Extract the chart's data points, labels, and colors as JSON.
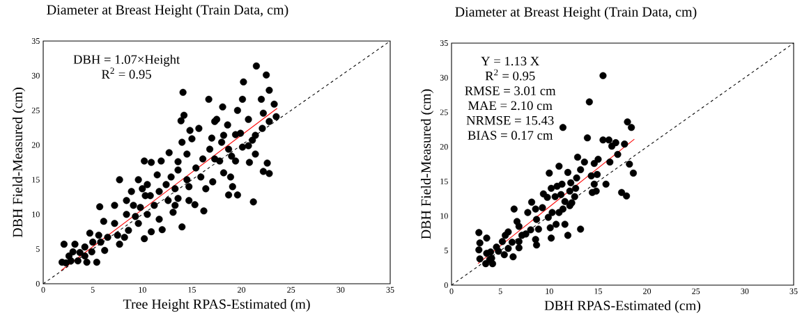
{
  "chart_data": [
    {
      "type": "scatter",
      "title": "Diameter at Breast Height (Train Data, cm)",
      "xlabel": "Tree Height RPAS-Estimated (m)",
      "ylabel": "DBH Field-Measured (cm)",
      "annotations": [
        "DBH = 1.07×Height",
        "R$^{2}$ = 0.95"
      ],
      "xlim": [
        0,
        35
      ],
      "ylim": [
        0,
        35
      ],
      "xticks": [
        0,
        5,
        10,
        15,
        20,
        25,
        30,
        35
      ],
      "yticks": [
        0,
        5,
        10,
        15,
        20,
        25,
        30,
        35
      ],
      "marker": "circle",
      "series": [
        {
          "type": "scatter",
          "color": "#000000",
          "x": [
            21.5,
            22.5,
            20.2,
            22.8,
            14.1,
            16.7,
            20.1,
            22.0,
            18.1,
            19.6,
            23.3,
            22.2,
            23.5,
            22.8,
            14.2,
            13.9,
            17.5,
            18.6,
            20.7,
            22.1,
            21.4,
            14.8,
            15.7,
            17.0,
            20.7,
            21.4,
            22.6,
            22.2,
            22.8,
            21.2,
            18.7,
            19.6,
            19.1,
            18.9,
            16.2,
            15.3,
            14.0,
            10.2,
            10.9,
            7.7,
            5.7,
            12.7,
            14.0,
            15.0,
            16.8,
            18.2,
            19.9,
            17.8,
            19.4,
            18.2,
            15.9,
            17.1,
            14.7,
            16.4,
            13.6,
            14.5,
            11.9,
            11.5,
            9.6,
            10.5,
            12.4,
            8.9,
            10.8,
            12.6,
            13.6,
            14.7,
            13.1,
            11.7,
            12.0,
            10.9,
            10.2,
            9.6,
            8.4,
            7.2,
            9.8,
            11.2,
            7.7,
            8.6,
            7.2,
            6.1,
            5.6,
            4.7,
            6.5,
            7.5,
            6.2,
            5.4,
            4.2,
            3.2,
            2.1,
            1.9,
            2.6,
            3.5,
            4.2,
            4.9,
            2.3,
            3.0,
            5.8,
            5.0,
            3.7,
            2.8,
            4.4,
            10.3,
            10.0,
            11.7,
            8.4,
            9.1,
            9.3,
            10.5,
            8.2,
            13.3,
            14.5,
            15.4,
            16.1,
            17.3,
            18.7,
            19.0,
            20.1,
            21.1,
            20.8,
            18.0,
            17.3,
            19.4,
            13.6,
            12.9,
            13.3
          ],
          "values": [
            31.4,
            30.1,
            29.1,
            27.9,
            27.6,
            26.6,
            26.6,
            26.6,
            25.5,
            25.0,
            25.9,
            24.6,
            24.1,
            23.4,
            24.3,
            23.5,
            23.7,
            22.9,
            23.7,
            22.4,
            21.4,
            22.1,
            22.4,
            21.0,
            19.9,
            18.7,
            17.4,
            16.2,
            15.9,
            11.8,
            12.8,
            12.8,
            14.0,
            15.4,
            10.5,
            11.4,
            8.2,
            17.7,
            17.5,
            15.0,
            11.1,
            18.9,
            20.4,
            20.9,
            19.4,
            21.4,
            21.7,
            17.7,
            17.7,
            16.0,
            15.4,
            14.7,
            14.0,
            13.7,
            16.4,
            18.7,
            17.7,
            15.7,
            15.0,
            14.3,
            14.3,
            13.3,
            12.7,
            12.0,
            12.3,
            12.0,
            10.3,
            9.3,
            7.8,
            7.5,
            6.5,
            8.7,
            10.0,
            11.3,
            11.0,
            11.3,
            5.7,
            7.7,
            8.7,
            9.0,
            7.0,
            7.3,
            6.7,
            7.0,
            4.8,
            3.1,
            5.3,
            5.7,
            5.7,
            3.1,
            4.0,
            3.3,
            4.0,
            4.6,
            3.0,
            4.6,
            6.0,
            6.0,
            4.5,
            3.3,
            3.1,
            12.7,
            13.7,
            13.3,
            12.0,
            11.3,
            9.7,
            10.0,
            6.7,
            11.3,
            15.0,
            16.7,
            18.0,
            18.0,
            19.4,
            18.4,
            19.7,
            20.7,
            17.5,
            20.4,
            23.4,
            21.5,
            17.6,
            15.4,
            13.7
          ]
        },
        {
          "type": "line",
          "color": "#ff0000",
          "marker": "none",
          "x": [
            1.8,
            23.6
          ],
          "values": [
            1.9,
            25.3
          ]
        },
        {
          "type": "line",
          "color": "#000000",
          "marker": "none",
          "line_style": "dashed",
          "x": [
            0,
            35
          ],
          "values": [
            0,
            35
          ]
        }
      ]
    },
    {
      "type": "scatter",
      "title": "Diameter at Breast Height (Train Data, cm)",
      "xlabel": "DBH RPAS-Estimated  (cm)",
      "ylabel": "DBH Field-Measured (cm)",
      "annotations": [
        "Y = 1.13 X",
        "R$^{2}$ = 0.95",
        "RMSE = 3.01 cm",
        "MAE = 2.10 cm",
        "NRMSE = 15.43",
        "BIAS = 0.17 cm"
      ],
      "xlim": [
        0,
        35
      ],
      "ylim": [
        0,
        35
      ],
      "xticks": [
        0,
        5,
        10,
        15,
        20,
        25,
        30,
        35
      ],
      "yticks": [
        0,
        5,
        10,
        15,
        20,
        25,
        30,
        35
      ],
      "marker": "circle",
      "series": [
        {
          "type": "scatter",
          "color": "#000000",
          "x": [
            15.5,
            14.1,
            11.4,
            18.0,
            18.4,
            13.9,
            15.5,
            16.1,
            16.8,
            16.4,
            17.7,
            12.9,
            13.6,
            15.0,
            14.6,
            16.2,
            17.0,
            18.2,
            18.6,
            11.0,
            10.0,
            11.9,
            13.2,
            14.3,
            14.9,
            12.8,
            12.2,
            11.3,
            10.2,
            10.8,
            14.6,
            15.8,
            14.4,
            14.8,
            17.4,
            17.9,
            12.1,
            12.7,
            12.6,
            9.4,
            9.8,
            10.6,
            11.2,
            11.6,
            12.3,
            12.1,
            9.3,
            8.2,
            8.6,
            7.8,
            6.4,
            11.4,
            11.0,
            10.3,
            9.9,
            8.7,
            6.7,
            6.9,
            10.7,
            11.6,
            10.1,
            8.9,
            8.1,
            7.6,
            7.2,
            13.2,
            11.9,
            10.2,
            8.6,
            8.7,
            6.9,
            6.9,
            6.2,
            5.8,
            5.5,
            5.2,
            5.8,
            4.6,
            4.8,
            5.4,
            6.3,
            2.8,
            2.9,
            3.6,
            2.8,
            3.6,
            2.9,
            4.0,
            4.1,
            3.5,
            4.2,
            3.9
          ],
          "values": [
            30.3,
            26.5,
            22.8,
            23.6,
            22.8,
            21.3,
            21.0,
            21.0,
            20.6,
            20.1,
            20.4,
            18.5,
            17.8,
            18.2,
            17.6,
            17.8,
            18.9,
            17.5,
            16.2,
            17.2,
            16.2,
            16.3,
            16.7,
            15.8,
            16.0,
            15.5,
            14.8,
            14.6,
            14.0,
            14.3,
            14.6,
            14.6,
            13.4,
            13.6,
            13.4,
            12.9,
            13.6,
            14.0,
            12.8,
            13.2,
            12.7,
            12.8,
            13.1,
            12.1,
            11.9,
            11.5,
            11.2,
            12.0,
            11.0,
            10.5,
            11.0,
            11.0,
            10.5,
            10.5,
            9.8,
            9.5,
            9.2,
            8.5,
            8.8,
            8.8,
            8.3,
            8.1,
            8.0,
            7.4,
            7.2,
            8.1,
            7.2,
            6.8,
            6.6,
            5.8,
            6.3,
            5.4,
            6.2,
            7.7,
            7.2,
            6.3,
            5.3,
            5.5,
            4.9,
            4.4,
            4.1,
            7.6,
            6.1,
            6.8,
            5.1,
            4.6,
            3.8,
            4.8,
            3.9,
            3.1,
            3.1,
            3.7
          ]
        },
        {
          "type": "line",
          "color": "#ff0000",
          "marker": "none",
          "x": [
            2.7,
            18.7
          ],
          "values": [
            3.1,
            21.1
          ]
        },
        {
          "type": "line",
          "color": "#000000",
          "marker": "none",
          "line_style": "dashed",
          "x": [
            0,
            35
          ],
          "values": [
            0,
            35
          ]
        }
      ]
    }
  ]
}
